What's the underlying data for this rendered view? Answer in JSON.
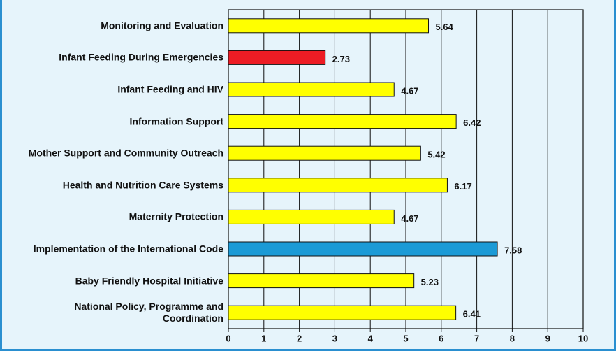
{
  "chart_data": {
    "type": "bar",
    "orientation": "horizontal",
    "categories": [
      "Monitoring and Evaluation",
      "Infant Feeding During Emergencies",
      "Infant Feeding and HIV",
      "Information Support",
      "Mother Support and Community Outreach",
      "Health and Nutrition Care Systems",
      "Maternity Protection",
      "Implementation of the International Code",
      "Baby Friendly Hospital Initiative",
      "National Policy, Programme and Coordination"
    ],
    "values": [
      5.64,
      2.73,
      4.67,
      6.42,
      5.42,
      6.17,
      4.67,
      7.58,
      5.23,
      6.41
    ],
    "colors": [
      "#ffff00",
      "#ed1c24",
      "#ffff00",
      "#ffff00",
      "#ffff00",
      "#ffff00",
      "#ffff00",
      "#1b9ad6",
      "#ffff00",
      "#ffff00"
    ],
    "xlim": [
      0,
      10
    ],
    "xticks": [
      0,
      1,
      2,
      3,
      4,
      5,
      6,
      7,
      8,
      9,
      10
    ],
    "grid": true
  }
}
